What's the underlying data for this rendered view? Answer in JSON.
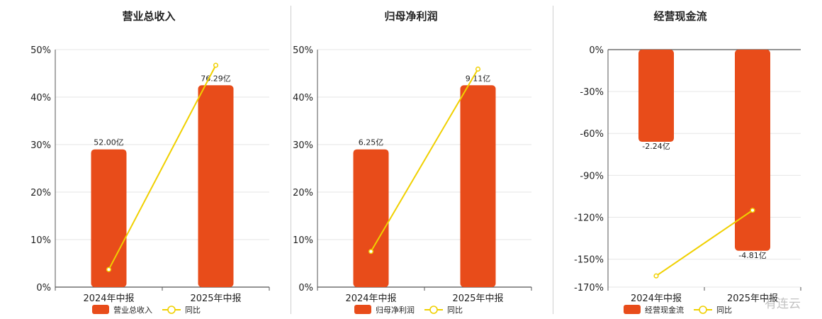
{
  "colors": {
    "bar": "#e84c1a",
    "line": "#f0d000",
    "grid": "#e6e6e6",
    "axis": "#555555"
  },
  "watermark": "有连云",
  "chart_data": [
    {
      "type": "bar",
      "title": "营业总收入",
      "categories": [
        "2024年中报",
        "2025年中报"
      ],
      "series": [
        {
          "name": "营业总收入",
          "type": "bar",
          "values": [
            29,
            42.5
          ],
          "labels": [
            "52.00亿",
            "76.29亿"
          ]
        },
        {
          "name": "同比",
          "type": "line",
          "values": [
            3.7,
            46.7
          ]
        }
      ],
      "yticks": [
        "0%",
        "10%",
        "20%",
        "30%",
        "40%",
        "50%"
      ],
      "ylim": [
        0,
        50
      ]
    },
    {
      "type": "bar",
      "title": "归母净利润",
      "categories": [
        "2024年中报",
        "2025年中报"
      ],
      "series": [
        {
          "name": "归母净利润",
          "type": "bar",
          "values": [
            29,
            42.5
          ],
          "labels": [
            "6.25亿",
            "9.11亿"
          ]
        },
        {
          "name": "同比",
          "type": "line",
          "values": [
            7.5,
            45.9
          ]
        }
      ],
      "yticks": [
        "0%",
        "10%",
        "20%",
        "30%",
        "40%",
        "50%"
      ],
      "ylim": [
        0,
        50
      ]
    },
    {
      "type": "bar",
      "title": "经营现金流",
      "categories": [
        "2024年中报",
        "2025年中报"
      ],
      "series": [
        {
          "name": "经营现金流",
          "type": "bar",
          "values": [
            -66,
            -144
          ],
          "labels": [
            "-2.24亿",
            "-4.81亿"
          ]
        },
        {
          "name": "同比",
          "type": "line",
          "values": [
            -162,
            -115
          ]
        }
      ],
      "yticks": [
        "0%",
        "-30%",
        "-60%",
        "-90%",
        "-120%",
        "-150%",
        "-170%"
      ],
      "yvalues": [
        0,
        -30,
        -60,
        -90,
        -120,
        -150,
        -170
      ],
      "ylim": [
        -170,
        0
      ]
    }
  ]
}
